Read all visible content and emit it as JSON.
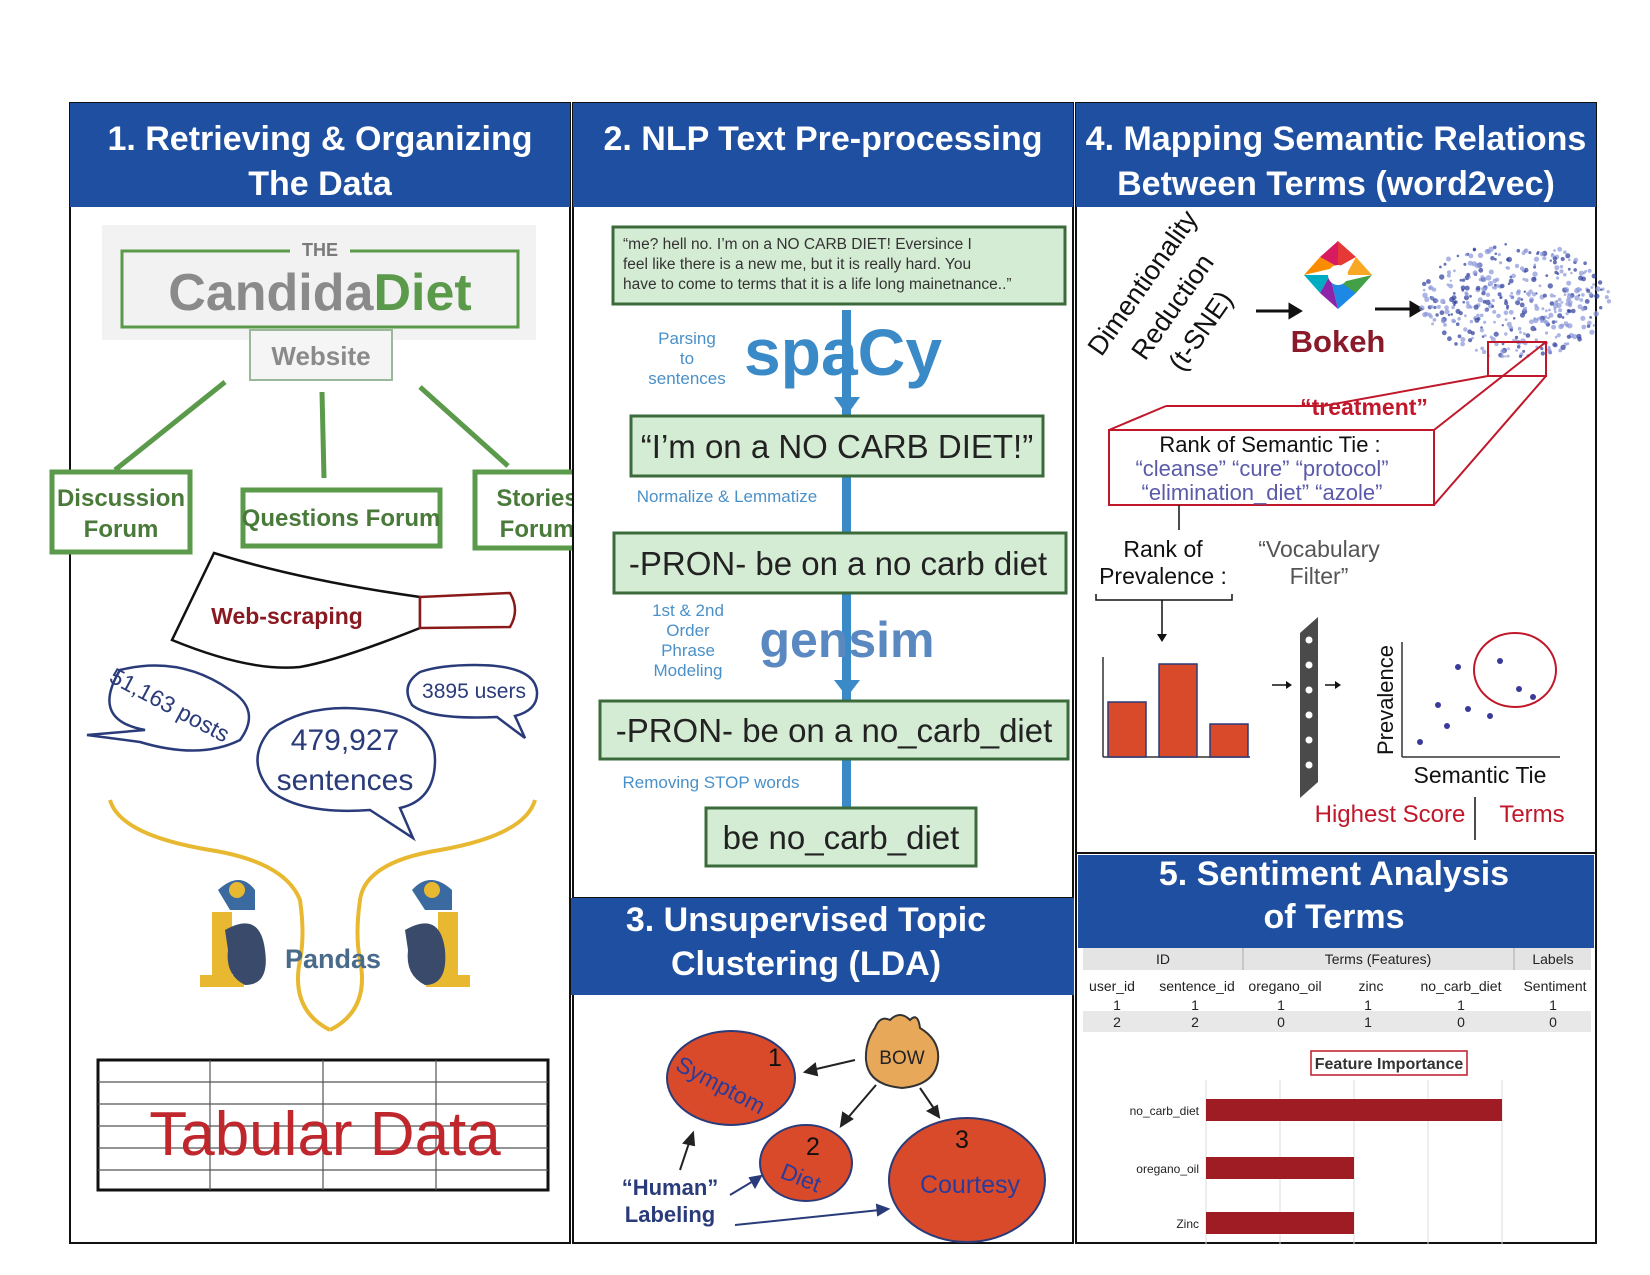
{
  "colors": {
    "header": "#1f4fa0",
    "accent_red": "#c0182a",
    "green": "#5a9a4a",
    "blue": "#4a90c8",
    "navy": "#2a3b7a"
  },
  "panel1": {
    "title_line1": "1. Retrieving & Organizing",
    "title_line2": "The Data",
    "logo_the": "THE",
    "logo_candida": "Candida",
    "logo_diet": "Diet",
    "logo_website": "Website",
    "forums": [
      {
        "line1": "Discussion",
        "line2": "Forum"
      },
      {
        "line1": "Questions Forum",
        "line2": ""
      },
      {
        "line1": "Stories",
        "line2": "Forum"
      }
    ],
    "scraping_label": "Web-scraping",
    "bubble_posts": "51,163 posts",
    "bubble_sentences_1": "479,927",
    "bubble_sentences_2": "sentences",
    "bubble_users": "3895 users",
    "pandas_label": "Pandas",
    "tabular_label": "Tabular Data"
  },
  "panel2": {
    "title": "2. NLP Text Pre-processing",
    "quote_line1": "“me? hell no. I’m on a NO CARB DIET! Eversince I",
    "quote_line2": "feel like there is a new me, but it is really hard. You",
    "quote_line3": "have to come to terms that it is a life long mainetnance..”",
    "step1_l1": "Parsing",
    "step1_l2": "to",
    "step1_l3": "sentences",
    "spacy_logo": "spaCy",
    "sentence_box": "“I’m on a NO CARB DIET!”",
    "step2": "Normalize & Lemmatize",
    "lemma_box": "-PRON- be on a no carb diet",
    "step3_l1": "1st & 2nd",
    "step3_l2": "Order",
    "step3_l3": "Phrase",
    "step3_l4": "Modeling",
    "gensim_logo": "gensim",
    "phrase_box": "-PRON- be on a no_carb_diet",
    "step4": "Removing STOP words",
    "final_box": "be no_carb_diet"
  },
  "panel3": {
    "title_line1": "3. Unsupervised Topic",
    "title_line2": "Clustering (LDA)",
    "bow": "BOW",
    "topic1_num": "1",
    "topic1_label": "Symptom",
    "topic2_num": "2",
    "topic2_label": "Diet",
    "topic3_num": "3",
    "topic3_label": "Courtesy",
    "human_l1": "“Human”",
    "human_l2": "Labeling"
  },
  "panel4": {
    "title_line1": "4. Mapping Semantic Relations",
    "title_line2": "Between Terms (word2vec)",
    "dimred_l1": "Dimentionality",
    "dimred_l2": "Reduction",
    "dimred_l3": "(t-SNE)",
    "bokeh_label": "Bokeh",
    "treatment": "“treatment”",
    "rank_title": "Rank of Semantic Tie :",
    "rank_terms_l1": "“cleanse”  “cure” “protocol”",
    "rank_terms_l2": "“elimination_diet”  “azole”",
    "prevalence_l1": "Rank of",
    "prevalence_l2": "Prevalence :",
    "vocab_l1": "“Vocabulary",
    "vocab_l2": "Filter”",
    "axis_y": "Prevalence",
    "axis_x": "Semantic Tie",
    "highest_score": "Highest Score",
    "terms": "Terms",
    "bar_values": [
      0.55,
      0.93,
      0.33
    ]
  },
  "panel5": {
    "title_line1": "5. Sentiment Analysis",
    "title_line2": "of  Terms",
    "group_headers": [
      "ID",
      "Terms (Features)",
      "Labels"
    ],
    "columns": [
      "user_id",
      "sentence_id",
      "oregano_oil",
      "zinc",
      "no_carb_diet",
      "Sentiment"
    ],
    "rows": [
      [
        "1",
        "1",
        "1",
        "1",
        "1",
        "1"
      ],
      [
        "2",
        "2",
        "0",
        "1",
        "0",
        "0"
      ]
    ],
    "chart_title": "Feature Importance"
  },
  "chart_data": {
    "type": "bar",
    "title": "Feature Importance",
    "categories": [
      "no_carb_diet",
      "oregano_oil",
      "Zinc"
    ],
    "values": [
      1.0,
      0.5,
      0.5
    ],
    "orientation": "horizontal"
  }
}
